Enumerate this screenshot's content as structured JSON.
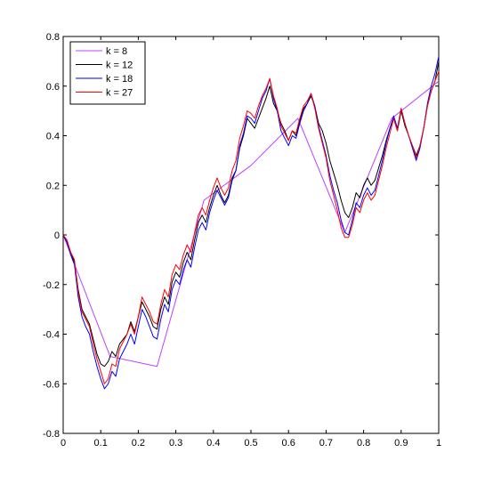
{
  "chart_data": {
    "type": "line",
    "title": "",
    "xlabel": "",
    "ylabel": "",
    "xlim": [
      0,
      1
    ],
    "ylim": [
      -0.8,
      0.8
    ],
    "xticks": [
      "0",
      "0.1",
      "0.2",
      "0.3",
      "0.4",
      "0.5",
      "0.6",
      "0.7",
      "0.8",
      "0.9",
      "1"
    ],
    "yticks": [
      "-0.8",
      "-0.6",
      "-0.4",
      "-0.2",
      "0",
      "0.2",
      "0.4",
      "0.6",
      "0.8"
    ],
    "grid": false,
    "legend_position": "top-left",
    "series": [
      {
        "name": "k = 8",
        "color": "#bf40ff",
        "x": [
          0,
          0.125,
          0.25,
          0.375,
          0.5,
          0.625,
          0.75,
          0.875,
          1
        ],
        "y": [
          0,
          -0.49,
          -0.53,
          0.14,
          0.28,
          0.47,
          0.01,
          0.47,
          0.62
        ]
      },
      {
        "name": "k = 12",
        "color": "#000000",
        "x": [
          0,
          0.01,
          0.02,
          0.03,
          0.04,
          0.05,
          0.06,
          0.07,
          0.08,
          0.09,
          0.1,
          0.11,
          0.12,
          0.13,
          0.14,
          0.15,
          0.16,
          0.17,
          0.18,
          0.19,
          0.2,
          0.21,
          0.22,
          0.23,
          0.24,
          0.25,
          0.26,
          0.27,
          0.28,
          0.29,
          0.3,
          0.31,
          0.32,
          0.33,
          0.34,
          0.35,
          0.36,
          0.37,
          0.38,
          0.39,
          0.4,
          0.41,
          0.42,
          0.43,
          0.44,
          0.45,
          0.46,
          0.47,
          0.48,
          0.49,
          0.5,
          0.51,
          0.52,
          0.53,
          0.54,
          0.55,
          0.56,
          0.57,
          0.58,
          0.59,
          0.6,
          0.61,
          0.62,
          0.63,
          0.64,
          0.65,
          0.66,
          0.67,
          0.68,
          0.69,
          0.7,
          0.71,
          0.72,
          0.73,
          0.74,
          0.75,
          0.76,
          0.77,
          0.78,
          0.79,
          0.8,
          0.81,
          0.82,
          0.83,
          0.84,
          0.85,
          0.86,
          0.87,
          0.88,
          0.89,
          0.9,
          0.91,
          0.92,
          0.93,
          0.94,
          0.95,
          0.96,
          0.97,
          0.98,
          0.99,
          1
        ],
        "y": [
          0,
          -0.03,
          -0.07,
          -0.11,
          -0.22,
          -0.3,
          -0.33,
          -0.36,
          -0.42,
          -0.48,
          -0.52,
          -0.53,
          -0.51,
          -0.47,
          -0.49,
          -0.44,
          -0.42,
          -0.4,
          -0.35,
          -0.39,
          -0.33,
          -0.27,
          -0.3,
          -0.33,
          -0.37,
          -0.38,
          -0.3,
          -0.25,
          -0.28,
          -0.19,
          -0.15,
          -0.17,
          -0.11,
          -0.07,
          -0.1,
          -0.02,
          0.05,
          0.08,
          0.05,
          0.11,
          0.16,
          0.2,
          0.16,
          0.13,
          0.16,
          0.23,
          0.26,
          0.35,
          0.4,
          0.47,
          0.45,
          0.43,
          0.47,
          0.51,
          0.55,
          0.6,
          0.53,
          0.5,
          0.45,
          0.42,
          0.38,
          0.42,
          0.4,
          0.46,
          0.51,
          0.53,
          0.56,
          0.52,
          0.45,
          0.42,
          0.37,
          0.3,
          0.25,
          0.2,
          0.14,
          0.09,
          0.07,
          0.11,
          0.17,
          0.15,
          0.2,
          0.23,
          0.2,
          0.22,
          0.27,
          0.32,
          0.38,
          0.43,
          0.47,
          0.42,
          0.5,
          0.44,
          0.4,
          0.36,
          0.32,
          0.36,
          0.43,
          0.52,
          0.58,
          0.62,
          0.7
        ]
      },
      {
        "name": "k = 18",
        "color": "#0000ff",
        "x": [
          0,
          0.01,
          0.02,
          0.03,
          0.04,
          0.05,
          0.06,
          0.07,
          0.08,
          0.09,
          0.1,
          0.11,
          0.12,
          0.13,
          0.14,
          0.15,
          0.16,
          0.17,
          0.18,
          0.19,
          0.2,
          0.21,
          0.22,
          0.23,
          0.24,
          0.25,
          0.26,
          0.27,
          0.28,
          0.29,
          0.3,
          0.31,
          0.32,
          0.33,
          0.34,
          0.35,
          0.36,
          0.37,
          0.38,
          0.39,
          0.4,
          0.41,
          0.42,
          0.43,
          0.44,
          0.45,
          0.46,
          0.47,
          0.48,
          0.49,
          0.5,
          0.51,
          0.52,
          0.53,
          0.54,
          0.55,
          0.56,
          0.57,
          0.58,
          0.59,
          0.6,
          0.61,
          0.62,
          0.63,
          0.64,
          0.65,
          0.66,
          0.67,
          0.68,
          0.69,
          0.7,
          0.71,
          0.72,
          0.73,
          0.74,
          0.75,
          0.76,
          0.77,
          0.78,
          0.79,
          0.8,
          0.81,
          0.82,
          0.83,
          0.84,
          0.85,
          0.86,
          0.87,
          0.88,
          0.89,
          0.9,
          0.91,
          0.92,
          0.93,
          0.94,
          0.95,
          0.96,
          0.97,
          0.98,
          0.99,
          1
        ],
        "y": [
          0,
          -0.03,
          -0.08,
          -0.12,
          -0.25,
          -0.33,
          -0.37,
          -0.4,
          -0.47,
          -0.53,
          -0.58,
          -0.62,
          -0.6,
          -0.55,
          -0.57,
          -0.5,
          -0.47,
          -0.44,
          -0.4,
          -0.44,
          -0.37,
          -0.3,
          -0.33,
          -0.37,
          -0.41,
          -0.42,
          -0.34,
          -0.28,
          -0.31,
          -0.22,
          -0.18,
          -0.2,
          -0.14,
          -0.1,
          -0.13,
          -0.05,
          0.02,
          0.05,
          0.02,
          0.09,
          0.14,
          0.18,
          0.15,
          0.12,
          0.15,
          0.22,
          0.26,
          0.36,
          0.41,
          0.48,
          0.47,
          0.45,
          0.5,
          0.55,
          0.58,
          0.63,
          0.55,
          0.5,
          0.42,
          0.39,
          0.36,
          0.4,
          0.39,
          0.45,
          0.5,
          0.53,
          0.57,
          0.52,
          0.44,
          0.38,
          0.32,
          0.24,
          0.18,
          0.13,
          0.06,
          0.01,
          0.0,
          0.06,
          0.13,
          0.11,
          0.16,
          0.19,
          0.16,
          0.18,
          0.24,
          0.3,
          0.37,
          0.43,
          0.48,
          0.43,
          0.51,
          0.45,
          0.4,
          0.35,
          0.3,
          0.35,
          0.43,
          0.53,
          0.6,
          0.65,
          0.72
        ]
      },
      {
        "name": "k = 27",
        "color": "#ff0000",
        "x": [
          0,
          0.01,
          0.02,
          0.03,
          0.04,
          0.05,
          0.06,
          0.07,
          0.08,
          0.09,
          0.1,
          0.11,
          0.12,
          0.13,
          0.14,
          0.15,
          0.16,
          0.17,
          0.18,
          0.19,
          0.2,
          0.21,
          0.22,
          0.23,
          0.24,
          0.25,
          0.26,
          0.27,
          0.28,
          0.29,
          0.3,
          0.31,
          0.32,
          0.33,
          0.34,
          0.35,
          0.36,
          0.37,
          0.38,
          0.39,
          0.4,
          0.41,
          0.42,
          0.43,
          0.44,
          0.45,
          0.46,
          0.47,
          0.48,
          0.49,
          0.5,
          0.51,
          0.52,
          0.53,
          0.54,
          0.55,
          0.56,
          0.57,
          0.58,
          0.59,
          0.6,
          0.61,
          0.62,
          0.63,
          0.64,
          0.65,
          0.66,
          0.67,
          0.68,
          0.69,
          0.7,
          0.71,
          0.72,
          0.73,
          0.74,
          0.75,
          0.76,
          0.77,
          0.78,
          0.79,
          0.8,
          0.81,
          0.82,
          0.83,
          0.84,
          0.85,
          0.86,
          0.87,
          0.88,
          0.89,
          0.9,
          0.91,
          0.92,
          0.93,
          0.94,
          0.95,
          0.96,
          0.97,
          0.98,
          0.99,
          1
        ],
        "y": [
          0,
          -0.02,
          -0.07,
          -0.1,
          -0.23,
          -0.31,
          -0.34,
          -0.37,
          -0.44,
          -0.5,
          -0.55,
          -0.6,
          -0.58,
          -0.52,
          -0.53,
          -0.46,
          -0.43,
          -0.4,
          -0.36,
          -0.4,
          -0.33,
          -0.25,
          -0.28,
          -0.31,
          -0.35,
          -0.36,
          -0.28,
          -0.22,
          -0.25,
          -0.16,
          -0.12,
          -0.14,
          -0.08,
          -0.04,
          -0.07,
          0.01,
          0.08,
          0.11,
          0.08,
          0.14,
          0.19,
          0.23,
          0.19,
          0.16,
          0.19,
          0.26,
          0.3,
          0.39,
          0.44,
          0.5,
          0.49,
          0.47,
          0.52,
          0.56,
          0.59,
          0.63,
          0.56,
          0.51,
          0.44,
          0.41,
          0.38,
          0.42,
          0.41,
          0.47,
          0.52,
          0.54,
          0.57,
          0.51,
          0.43,
          0.37,
          0.31,
          0.22,
          0.16,
          0.1,
          0.03,
          -0.01,
          -0.01,
          0.04,
          0.11,
          0.09,
          0.14,
          0.17,
          0.14,
          0.16,
          0.22,
          0.28,
          0.35,
          0.41,
          0.47,
          0.42,
          0.51,
          0.45,
          0.4,
          0.36,
          0.31,
          0.36,
          0.43,
          0.52,
          0.58,
          0.62,
          0.66
        ]
      }
    ]
  }
}
